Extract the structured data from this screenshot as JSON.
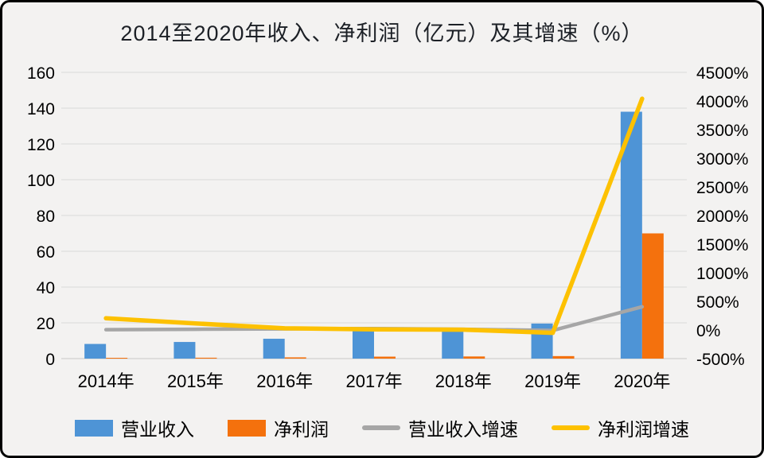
{
  "title": "2014至2020年收入、净利润（亿元）及其增速（%）",
  "chart_data": {
    "type": "bar",
    "subtype": "combo bar+line, dual axis",
    "title": "2014至2020年收入、净利润（亿元）及其增速（%）",
    "categories": [
      "2014年",
      "2015年",
      "2016年",
      "2017年",
      "2018年",
      "2019年",
      "2020年"
    ],
    "series": [
      {
        "id": "revenue",
        "name": "营业收入",
        "kind": "bar",
        "axis": "left",
        "color": "#4e94d6",
        "values": [
          8.2,
          9.3,
          11.1,
          15.5,
          15.6,
          19.6,
          138
        ]
      },
      {
        "id": "net-profit",
        "name": "净利润",
        "kind": "bar",
        "axis": "left",
        "color": "#f4710d",
        "values": [
          0.4,
          0.5,
          0.7,
          1.1,
          1.2,
          1.4,
          70
        ]
      },
      {
        "id": "revenue-growth",
        "name": "营业收入增速",
        "kind": "line",
        "axis": "right",
        "color": "#a6a6a6",
        "values": [
          5,
          13,
          19,
          25,
          12,
          -8,
          405
        ]
      },
      {
        "id": "net-profit-growth",
        "name": "净利润增速",
        "kind": "line",
        "axis": "right",
        "color": "#fdc101",
        "values": [
          205,
          115,
          30,
          10,
          5,
          -50,
          4040
        ]
      }
    ],
    "left_axis": {
      "min": 0,
      "max": 160,
      "step": 20,
      "tick_labels": [
        "0",
        "20",
        "40",
        "60",
        "80",
        "100",
        "120",
        "140",
        "160"
      ]
    },
    "right_axis": {
      "min": -500,
      "max": 4500,
      "step": 500,
      "tick_labels": [
        "-500%",
        "0%",
        "500%",
        "1000%",
        "1500%",
        "2000%",
        "2500%",
        "3000%",
        "3500%",
        "4000%",
        "4500%"
      ]
    },
    "grid": "horizontal gridlines on, at left-axis ticks",
    "legend_position": "bottom",
    "units": {
      "bars": "亿元",
      "lines": "%"
    }
  },
  "colors": {
    "background": "#f3f2f1",
    "frame_border": "#000000",
    "gridline": "#d9d9d9",
    "axis_line": "#c8c8c8",
    "revenue_bar": "#4e94d6",
    "net_profit_bar": "#f4710d",
    "revenue_growth_line": "#a6a6a6",
    "net_profit_growth_line": "#fdc101"
  }
}
